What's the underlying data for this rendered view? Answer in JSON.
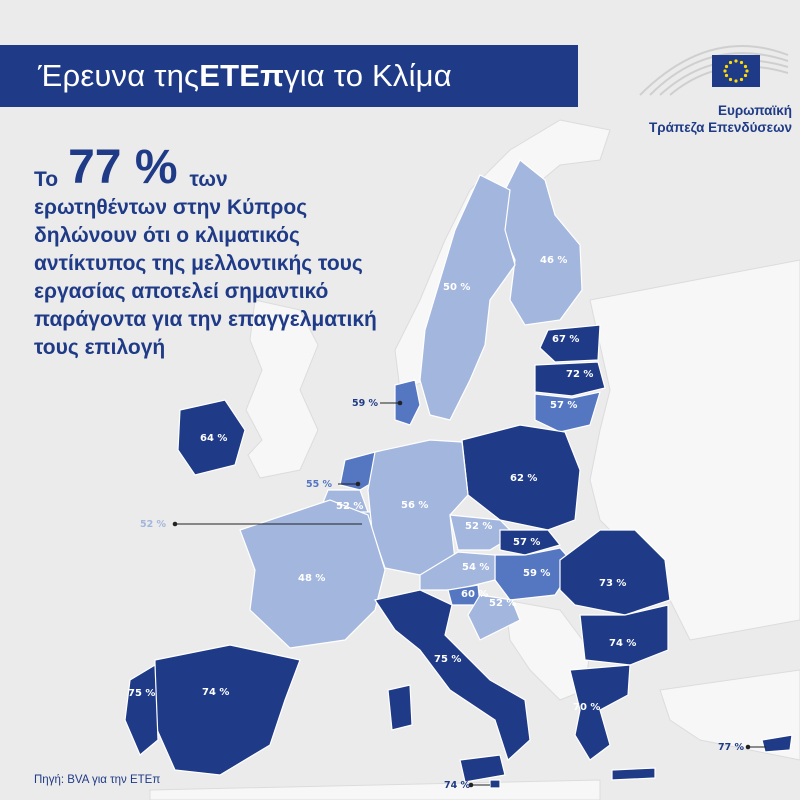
{
  "title": {
    "prefix": "Έρευνα της ",
    "bold": "ΕΤΕπ",
    "suffix": " για το Κλίμα"
  },
  "logo": {
    "line1": "Ευρωπαϊκή",
    "line2": "Τράπεζα Επενδύσεων"
  },
  "headline": {
    "prefix": "Το",
    "value": "77 %",
    "suffix": "των",
    "rest": [
      "ερωτηθέντων στην Κύπρος",
      "δηλώνουν ότι ο κλιματικός",
      "αντίκτυπος της μελλοντικής τους",
      "εργασίας αποτελεί σημαντικό",
      "παράγοντα για την επαγγελματική",
      "τους επιλογή"
    ]
  },
  "source": "Πηγή: BVA για την ΕΤΕπ",
  "colors": {
    "dark": "#1f3b87",
    "mid": "#5577c2",
    "light": "#a3b6dd",
    "bg": "#ebebeb",
    "land": "#f7f7f7"
  },
  "map_data": {
    "finland": "46 %",
    "sweden": "50 %",
    "estonia": "67 %",
    "latvia": "72 %",
    "lithuania": "57 %",
    "denmark": "59 %",
    "ireland": "64 %",
    "poland": "62 %",
    "netherlands": "55 %",
    "belgium": "52 %",
    "luxembourg": "52 %",
    "germany": "56 %",
    "czechia": "52 %",
    "slovakia": "57 %",
    "hungary": "59 %",
    "austria": "54 %",
    "slovenia": "60 %",
    "croatia": "52 %",
    "france": "48 %",
    "romania": "73 %",
    "bulgaria": "74 %",
    "italy": "75 %",
    "spain": "74 %",
    "portugal": "75 %",
    "greece": "70 %",
    "cyprus": "77 %",
    "malta": "74 %"
  }
}
